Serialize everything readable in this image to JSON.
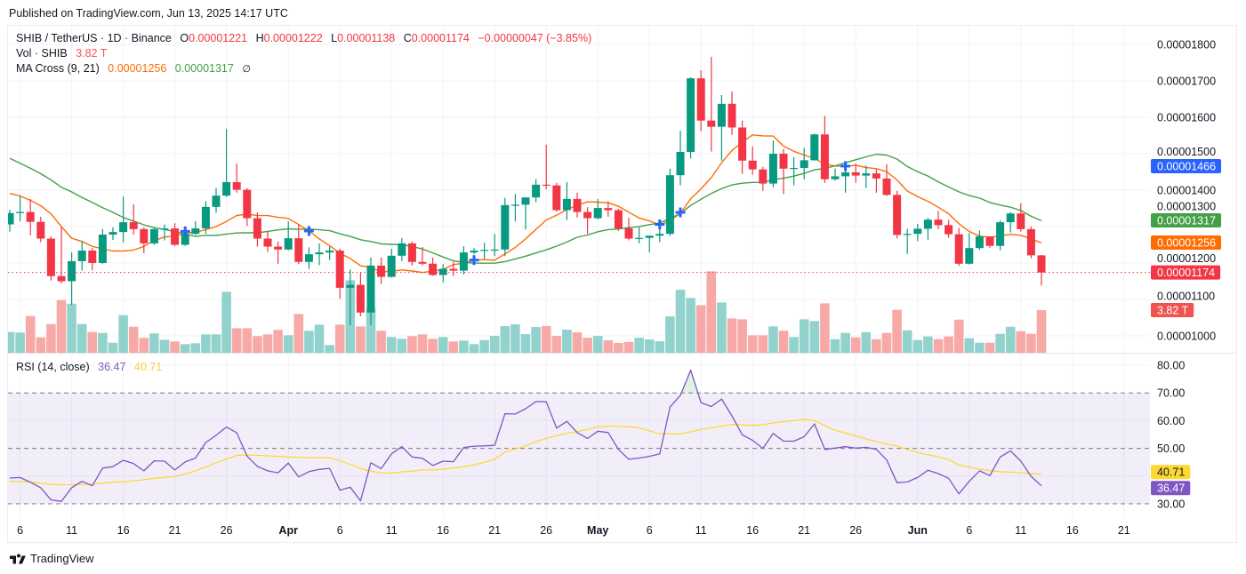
{
  "published": "Published on TradingView.com, Jun 13, 2025 14:17 UTC",
  "legend": {
    "symbol": "SHIB / TetherUS · 1D · Binance",
    "ohlc": [
      {
        "key": "O",
        "value": "0.00001221"
      },
      {
        "key": "H",
        "value": "0.00001222"
      },
      {
        "key": "L",
        "value": "0.00001138"
      },
      {
        "key": "C",
        "value": "0.00001174"
      }
    ],
    "change": "−0.00000047 (−3.85%)",
    "vol_label": "Vol · SHIB",
    "vol_value": "3.82 T",
    "ma_label": "MA Cross (9, 21)",
    "ma_short_value": "0.00001256",
    "ma_long_value": "0.00001317",
    "ma_cross_value": "∅",
    "rsi_label": "RSI (14, close)",
    "rsi_value": "36.47",
    "rsi_ma_value": "40.71"
  },
  "footer": {
    "brand": "TradingView",
    "logo_icon": "tradingview-logo-icon"
  },
  "colors": {
    "up": "#089981",
    "down": "#f23645",
    "vol_up": "#92d2cc",
    "vol_down": "#f7a9a7",
    "ma_short": "#ff6d00",
    "ma_long": "#43a047",
    "cross": "#2962ff",
    "rsi": "#7e57c2",
    "rsi_ma": "#fdd835",
    "last_price": "#f23645"
  },
  "chart_data": {
    "type": "candlestick",
    "title": "SHIB / TetherUS · 1D · Binance",
    "start_date": "2025-03-05",
    "interval": "1D",
    "price_unit": 1e-08,
    "volume_unit": "T",
    "candle_fields": [
      "open",
      "high",
      "low",
      "close",
      "volume"
    ],
    "candles": [
      [
        1306,
        1346,
        1286,
        1337,
        1.86
      ],
      [
        1337,
        1385,
        1315,
        1340,
        1.81
      ],
      [
        1340,
        1376,
        1276,
        1313,
        3.29
      ],
      [
        1313,
        1327,
        1257,
        1267,
        1.38
      ],
      [
        1267,
        1273,
        1152,
        1164,
        2.57
      ],
      [
        1164,
        1300,
        1144,
        1150,
        4.72
      ],
      [
        1150,
        1229,
        1085,
        1205,
        4.4
      ],
      [
        1205,
        1261,
        1179,
        1234,
        2.57
      ],
      [
        1234,
        1241,
        1180,
        1200,
        1.86
      ],
      [
        1200,
        1293,
        1198,
        1278,
        1.78
      ],
      [
        1278,
        1298,
        1263,
        1285,
        0.9
      ],
      [
        1285,
        1383,
        1257,
        1312,
        3.37
      ],
      [
        1312,
        1361,
        1278,
        1293,
        2.33
      ],
      [
        1293,
        1298,
        1227,
        1254,
        1.33
      ],
      [
        1254,
        1298,
        1250,
        1293,
        1.73
      ],
      [
        1293,
        1306,
        1262,
        1295,
        1.17
      ],
      [
        1295,
        1309,
        1247,
        1250,
        1.01
      ],
      [
        1250,
        1296,
        1247,
        1280,
        0.77
      ],
      [
        1280,
        1315,
        1277,
        1295,
        0.85
      ],
      [
        1295,
        1370,
        1280,
        1354,
        1.65
      ],
      [
        1354,
        1406,
        1338,
        1385,
        1.65
      ],
      [
        1385,
        1568,
        1381,
        1422,
        5.47
      ],
      [
        1422,
        1473,
        1393,
        1401,
        2.2
      ],
      [
        1401,
        1406,
        1302,
        1323,
        2.2
      ],
      [
        1323,
        1339,
        1245,
        1267,
        1.49
      ],
      [
        1267,
        1286,
        1230,
        1245,
        1.65
      ],
      [
        1245,
        1259,
        1198,
        1237,
        2.05
      ],
      [
        1237,
        1315,
        1235,
        1268,
        1.57
      ],
      [
        1268,
        1306,
        1197,
        1203,
        3.48
      ],
      [
        1203,
        1243,
        1184,
        1224,
        1.97
      ],
      [
        1224,
        1254,
        1194,
        1229,
        2.52
      ],
      [
        1229,
        1245,
        1208,
        1234,
        0.69
      ],
      [
        1234,
        1239,
        1102,
        1132,
        2.52
      ],
      [
        1132,
        1182,
        1029,
        1140,
        6.5
      ],
      [
        1140,
        1173,
        1054,
        1064,
        2.36
      ],
      [
        1064,
        1215,
        1030,
        1193,
        4.03
      ],
      [
        1193,
        1215,
        1143,
        1162,
        1.97
      ],
      [
        1162,
        1239,
        1160,
        1220,
        1.41
      ],
      [
        1220,
        1268,
        1205,
        1254,
        1.25
      ],
      [
        1254,
        1259,
        1193,
        1203,
        1.49
      ],
      [
        1203,
        1244,
        1193,
        1198,
        1.65
      ],
      [
        1198,
        1215,
        1165,
        1167,
        1.25
      ],
      [
        1167,
        1197,
        1147,
        1184,
        1.41
      ],
      [
        1184,
        1203,
        1164,
        1179,
        1.01
      ],
      [
        1179,
        1246,
        1169,
        1229,
        1.09
      ],
      [
        1229,
        1241,
        1224,
        1234,
        0.77
      ],
      [
        1234,
        1255,
        1211,
        1236,
        1.14
      ],
      [
        1236,
        1280,
        1219,
        1237,
        1.51
      ],
      [
        1237,
        1379,
        1219,
        1359,
        2.39
      ],
      [
        1359,
        1389,
        1315,
        1360,
        2.55
      ],
      [
        1360,
        1380,
        1292,
        1380,
        1.67
      ],
      [
        1380,
        1430,
        1367,
        1415,
        2.31
      ],
      [
        1415,
        1525,
        1402,
        1413,
        2.39
      ],
      [
        1413,
        1420,
        1341,
        1345,
        1.51
      ],
      [
        1345,
        1422,
        1318,
        1376,
        2.07
      ],
      [
        1376,
        1393,
        1325,
        1340,
        1.83
      ],
      [
        1340,
        1353,
        1280,
        1323,
        1.35
      ],
      [
        1323,
        1376,
        1320,
        1351,
        1.51
      ],
      [
        1351,
        1369,
        1327,
        1345,
        1.11
      ],
      [
        1345,
        1349,
        1288,
        1295,
        0.88
      ],
      [
        1295,
        1324,
        1262,
        1267,
        0.96
      ],
      [
        1267,
        1298,
        1254,
        1269,
        1.35
      ],
      [
        1269,
        1275,
        1229,
        1275,
        1.19
      ],
      [
        1275,
        1304,
        1257,
        1280,
        1.03
      ],
      [
        1280,
        1459,
        1274,
        1441,
        3.26
      ],
      [
        1441,
        1563,
        1413,
        1505,
        5.65
      ],
      [
        1505,
        1710,
        1487,
        1707,
        4.91
      ],
      [
        1707,
        1729,
        1562,
        1591,
        4.27
      ],
      [
        1591,
        1766,
        1506,
        1574,
        7.3
      ],
      [
        1574,
        1661,
        1481,
        1637,
        4.51
      ],
      [
        1637,
        1671,
        1552,
        1572,
        3.08
      ],
      [
        1572,
        1591,
        1445,
        1481,
        3.0
      ],
      [
        1481,
        1520,
        1442,
        1457,
        1.57
      ],
      [
        1457,
        1464,
        1398,
        1418,
        1.57
      ],
      [
        1418,
        1536,
        1408,
        1500,
        2.36
      ],
      [
        1500,
        1513,
        1389,
        1459,
        1.97
      ],
      [
        1459,
        1491,
        1413,
        1461,
        1.41
      ],
      [
        1461,
        1516,
        1430,
        1482,
        3.0
      ],
      [
        1482,
        1555,
        1481,
        1553,
        2.84
      ],
      [
        1553,
        1604,
        1420,
        1430,
        4.43
      ],
      [
        1430,
        1459,
        1426,
        1438,
        1.22
      ],
      [
        1438,
        1475,
        1393,
        1449,
        1.78
      ],
      [
        1449,
        1473,
        1420,
        1440,
        1.38
      ],
      [
        1440,
        1468,
        1406,
        1446,
        1.85
      ],
      [
        1446,
        1457,
        1393,
        1432,
        1.22
      ],
      [
        1432,
        1471,
        1384,
        1387,
        1.78
      ],
      [
        1387,
        1398,
        1268,
        1277,
        3.85
      ],
      [
        1277,
        1294,
        1225,
        1280,
        2.01
      ],
      [
        1280,
        1307,
        1260,
        1294,
        1.14
      ],
      [
        1294,
        1324,
        1264,
        1319,
        1.46
      ],
      [
        1319,
        1343,
        1293,
        1304,
        1.22
      ],
      [
        1304,
        1318,
        1269,
        1279,
        1.46
      ],
      [
        1279,
        1296,
        1192,
        1198,
        2.97
      ],
      [
        1198,
        1282,
        1196,
        1241,
        1.3
      ],
      [
        1241,
        1289,
        1236,
        1273,
        0.9
      ],
      [
        1273,
        1273,
        1242,
        1247,
        0.9
      ],
      [
        1247,
        1317,
        1235,
        1312,
        1.7
      ],
      [
        1312,
        1340,
        1284,
        1336,
        2.33
      ],
      [
        1336,
        1364,
        1286,
        1293,
        1.93
      ],
      [
        1293,
        1300,
        1213,
        1221,
        1.7
      ],
      [
        1221,
        1222,
        1138,
        1174,
        3.82
      ]
    ],
    "moving_averages": [
      {
        "name": "MA 9",
        "period": 9,
        "color_key": "ma_short",
        "lead_values": [
          1391,
          1384,
          1372,
          1357,
          1335,
          1300,
          1268,
          1259
        ]
      },
      {
        "name": "MA 21",
        "period": 21,
        "color_key": "ma_long",
        "lead_values": [
          1487,
          1474,
          1460,
          1445,
          1428,
          1408,
          1395,
          1380,
          1366,
          1352,
          1339,
          1325,
          1315,
          1305,
          1297,
          1292,
          1286,
          1280,
          1273,
          1276
        ]
      }
    ],
    "ma_crosses": [
      {
        "date": "2025-03-22",
        "price": 1287
      },
      {
        "date": "2025-04-03",
        "price": 1288
      },
      {
        "date": "2025-04-19",
        "price": 1208
      },
      {
        "date": "2025-05-07",
        "price": 1306
      },
      {
        "date": "2025-05-09",
        "price": 1339
      },
      {
        "date": "2025-05-25",
        "price": 1466
      }
    ],
    "price_axis": {
      "range": [
        1000,
        1800
      ],
      "ticks": [
        "0.00001800",
        "0.00001700",
        "0.00001600",
        "0.00001500",
        "0.00001400",
        "0.00001300",
        "0.00001200",
        "0.00001100",
        "0.00001000"
      ]
    },
    "price_badges": [
      {
        "label": "0.00001466",
        "bg": "#2962ff",
        "fg": "#ffffff",
        "name": "ma-cross-value-badge"
      },
      {
        "label": "0.00001317",
        "bg": "#43a047",
        "fg": "#ffffff",
        "name": "ma-long-value-badge"
      },
      {
        "label": "0.00001256",
        "bg": "#ff6d00",
        "fg": "#ffffff",
        "name": "ma-short-value-badge"
      },
      {
        "label": "0.00001174",
        "bg": "#f23645",
        "fg": "#ffffff",
        "name": "last-price-badge"
      }
    ],
    "volume_badge": {
      "label": "3.82 T",
      "bg": "#f05350",
      "fg": "#ffffff"
    },
    "rsi": {
      "period": 14,
      "range": [
        30,
        80
      ],
      "bands": [
        70,
        50,
        30
      ],
      "ticks": [
        "80.00",
        "70.00",
        "60.00",
        "50.00",
        "30.00"
      ],
      "values": [
        39.3,
        39.5,
        37.8,
        35.8,
        31.4,
        30.9,
        35.8,
        38.1,
        36.5,
        42.9,
        43.4,
        45.7,
        44.5,
        41.9,
        45.5,
        45.4,
        42.2,
        45.1,
        46.5,
        52.1,
        54.7,
        57.7,
        55.6,
        47.2,
        43.5,
        41.9,
        41.2,
        44.7,
        39.7,
        41.6,
        42.4,
        42.8,
        34.9,
        36.0,
        31.1,
        44.8,
        42.7,
        48.0,
        50.6,
        46.9,
        46.4,
        43.8,
        45.4,
        45.2,
        50.3,
        50.8,
        50.9,
        51.1,
        62.5,
        62.4,
        64.3,
        66.9,
        66.8,
        57.3,
        59.7,
        55.7,
        53.6,
        56.2,
        55.7,
        49.6,
        46.1,
        46.5,
        47.1,
        48.0,
        64.9,
        69.1,
        78.2,
        66.5,
        65.1,
        67.8,
        61.7,
        54.9,
        52.9,
        50.0,
        55.4,
        52.6,
        52.6,
        54.2,
        58.8,
        49.6,
        50.1,
        50.6,
        50.1,
        50.4,
        49.6,
        45.8,
        37.6,
        37.9,
        39.5,
        42.1,
        40.9,
        39.2,
        33.6,
        38.1,
        41.9,
        40.2,
        46.9,
        49.1,
        45.4,
        39.9,
        36.47
      ],
      "ma_values": [
        38.2,
        38.0,
        37.8,
        37.4,
        37.0,
        36.9,
        36.9,
        37.0,
        37.1,
        37.4,
        37.8,
        37.9,
        38.3,
        38.7,
        39.2,
        39.5,
        39.9,
        40.8,
        41.9,
        43.3,
        44.8,
        46.2,
        47.5,
        47.5,
        47.5,
        47.3,
        47.1,
        46.9,
        46.8,
        46.6,
        46.6,
        46.6,
        45.6,
        44.2,
        42.7,
        41.8,
        41.1,
        41.1,
        41.5,
        41.8,
        42.2,
        42.2,
        42.5,
        42.9,
        43.4,
        44.0,
        45.0,
        46.1,
        48.6,
        49.8,
        50.9,
        52.4,
        53.6,
        54.6,
        55.4,
        56.1,
        56.8,
        57.8,
        58.0,
        58.0,
        57.8,
        57.4,
        56.3,
        55.2,
        55.2,
        55.2,
        56.0,
        56.8,
        57.4,
        58.0,
        58.6,
        58.5,
        58.3,
        58.5,
        59.2,
        59.6,
        60.0,
        60.5,
        60.0,
        58.2,
        56.5,
        55.5,
        54.5,
        53.4,
        52.4,
        51.6,
        50.8,
        49.6,
        48.5,
        47.7,
        47.0,
        45.9,
        44.0,
        43.2,
        42.5,
        42.0,
        41.6,
        41.4,
        41.2,
        40.9,
        40.71
      ],
      "badges": [
        {
          "label": "40.71",
          "bg": "#fdd835",
          "fg": "#131722",
          "name": "rsi-ma-value-badge"
        },
        {
          "label": "36.47",
          "bg": "#7e57c2",
          "fg": "#ffffff",
          "name": "rsi-value-badge"
        }
      ]
    },
    "time_axis": {
      "ticks": [
        {
          "label": "6",
          "date": "2025-03-06"
        },
        {
          "label": "11",
          "date": "2025-03-11"
        },
        {
          "label": "16",
          "date": "2025-03-16"
        },
        {
          "label": "21",
          "date": "2025-03-21"
        },
        {
          "label": "26",
          "date": "2025-03-26"
        },
        {
          "label": "Apr",
          "date": "2025-04-01",
          "month": true
        },
        {
          "label": "6",
          "date": "2025-04-06"
        },
        {
          "label": "11",
          "date": "2025-04-11"
        },
        {
          "label": "16",
          "date": "2025-04-16"
        },
        {
          "label": "21",
          "date": "2025-04-21"
        },
        {
          "label": "26",
          "date": "2025-04-26"
        },
        {
          "label": "May",
          "date": "2025-05-01",
          "month": true
        },
        {
          "label": "6",
          "date": "2025-05-06"
        },
        {
          "label": "11",
          "date": "2025-05-11"
        },
        {
          "label": "16",
          "date": "2025-05-16"
        },
        {
          "label": "21",
          "date": "2025-05-21"
        },
        {
          "label": "26",
          "date": "2025-05-26"
        },
        {
          "label": "Jun",
          "date": "2025-06-01",
          "month": true
        },
        {
          "label": "6",
          "date": "2025-06-06"
        },
        {
          "label": "11",
          "date": "2025-06-11"
        },
        {
          "label": "16",
          "date": "2025-06-16"
        },
        {
          "label": "21",
          "date": "2025-06-21"
        }
      ]
    },
    "grid": true,
    "legend_position": "top-left"
  }
}
